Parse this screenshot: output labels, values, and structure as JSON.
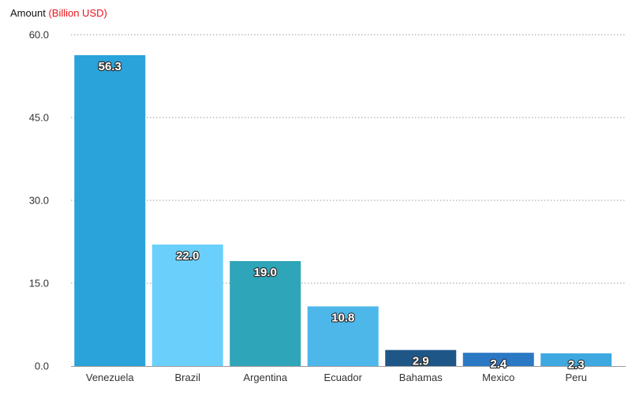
{
  "chart_data": {
    "type": "bar",
    "ylabel": "Amount",
    "ylabel_unit": "(Billion USD)",
    "categories": [
      "Venezuela",
      "Brazil",
      "Argentina",
      "Ecuador",
      "Bahamas",
      "Mexico",
      "Peru"
    ],
    "values": [
      56.3,
      22.0,
      19.0,
      10.8,
      2.9,
      2.4,
      2.3
    ],
    "value_labels": [
      "56.3",
      "22.0",
      "19.0",
      "10.8",
      "2.9",
      "2.4",
      "2.3"
    ],
    "colors": [
      "#2aa2da",
      "#6ad0fb",
      "#2ea5b8",
      "#4db7ea",
      "#1e5687",
      "#2b78c4",
      "#3ea9e0"
    ],
    "ylim": [
      0,
      60
    ],
    "yticks": [
      0,
      15,
      30,
      45,
      60
    ],
    "ytick_labels": [
      "0.0",
      "15.0",
      "30.0",
      "45.0",
      "60.0"
    ],
    "grid": true,
    "legend": "none"
  }
}
